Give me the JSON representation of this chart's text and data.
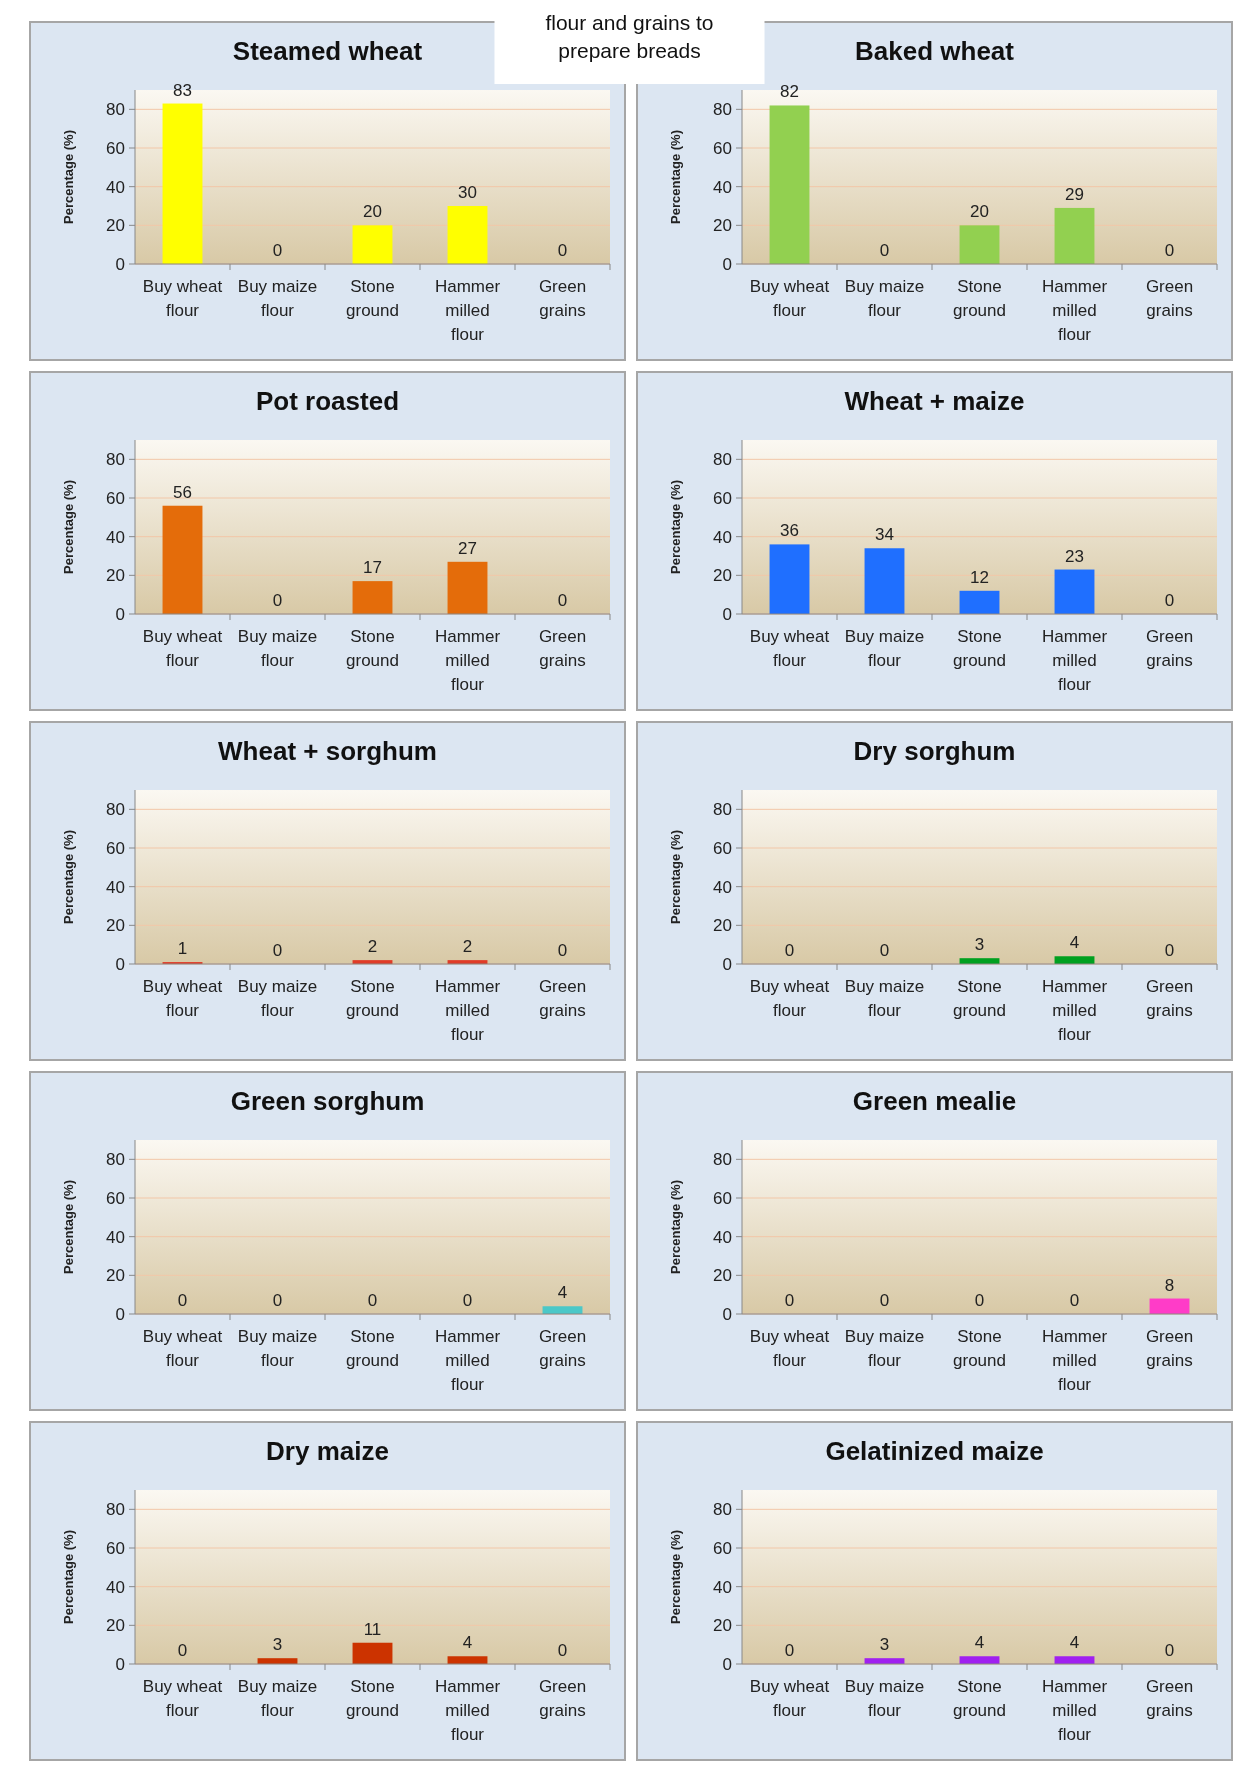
{
  "chart_data": [
    {
      "type": "bar",
      "title": "Steamed wheat",
      "annotations": [
        "flour and grains to prepare breads"
      ],
      "ylabel": "Percentage (%)",
      "categories": [
        "Buy wheat flour",
        "Buy maize flour",
        "Stone ground",
        "Hammer milled flour",
        "Green grains"
      ],
      "values": [
        83,
        0,
        20,
        30,
        0
      ],
      "color": "#ffff00",
      "ylim": [
        0,
        90
      ],
      "yticks": [
        0,
        20,
        40,
        60,
        80
      ],
      "grid": "y",
      "data_labels": true
    },
    {
      "type": "bar",
      "title": "Baked wheat",
      "ylabel": "Percentage (%)",
      "categories": [
        "Buy wheat flour",
        "Buy maize flour",
        "Stone ground",
        "Hammer milled flour",
        "Green grains"
      ],
      "values": [
        82,
        0,
        20,
        29,
        0
      ],
      "color": "#92d050",
      "ylim": [
        0,
        90
      ],
      "yticks": [
        0,
        20,
        40,
        60,
        80
      ],
      "grid": "y",
      "data_labels": true
    },
    {
      "type": "bar",
      "title": "Pot roasted",
      "ylabel": "Percentage (%)",
      "categories": [
        "Buy wheat flour",
        "Buy maize flour",
        "Stone ground",
        "Hammer milled flour",
        "Green grains"
      ],
      "values": [
        56,
        0,
        17,
        27,
        0
      ],
      "color": "#e46c0a",
      "ylim": [
        0,
        90
      ],
      "yticks": [
        0,
        20,
        40,
        60,
        80
      ],
      "grid": "y",
      "data_labels": true
    },
    {
      "type": "bar",
      "title": "Wheat + maize",
      "ylabel": "Percentage (%)",
      "categories": [
        "Buy wheat flour",
        "Buy maize flour",
        "Stone ground",
        "Hammer milled flour",
        "Green grains"
      ],
      "values": [
        36,
        34,
        12,
        23,
        0
      ],
      "color": "#1f6fff",
      "ylim": [
        0,
        90
      ],
      "yticks": [
        0,
        20,
        40,
        60,
        80
      ],
      "grid": "y",
      "data_labels": true
    },
    {
      "type": "bar",
      "title": "Wheat + sorghum",
      "ylabel": "Percentage (%)",
      "categories": [
        "Buy wheat flour",
        "Buy maize flour",
        "Stone ground",
        "Hammer milled flour",
        "Green grains"
      ],
      "values": [
        1,
        0,
        2,
        2,
        0
      ],
      "color": "#e03c28",
      "ylim": [
        0,
        90
      ],
      "yticks": [
        0,
        20,
        40,
        60,
        80
      ],
      "grid": "y",
      "data_labels": true
    },
    {
      "type": "bar",
      "title": "Dry sorghum",
      "ylabel": "Percentage (%)",
      "categories": [
        "Buy wheat flour",
        "Buy maize flour",
        "Stone ground",
        "Hammer milled flour",
        "Green grains"
      ],
      "values": [
        0,
        0,
        3,
        4,
        0
      ],
      "color": "#00a020",
      "ylim": [
        0,
        90
      ],
      "yticks": [
        0,
        20,
        40,
        60,
        80
      ],
      "grid": "y",
      "data_labels": true
    },
    {
      "type": "bar",
      "title": "Green sorghum",
      "ylabel": "Percentage (%)",
      "categories": [
        "Buy wheat flour",
        "Buy maize flour",
        "Stone ground",
        "Hammer milled flour",
        "Green grains"
      ],
      "values": [
        0,
        0,
        0,
        0,
        4
      ],
      "color": "#4bc8c8",
      "ylim": [
        0,
        90
      ],
      "yticks": [
        0,
        20,
        40,
        60,
        80
      ],
      "grid": "y",
      "data_labels": true
    },
    {
      "type": "bar",
      "title": "Green mealie",
      "ylabel": "Percentage (%)",
      "categories": [
        "Buy wheat flour",
        "Buy maize flour",
        "Stone ground",
        "Hammer milled flour",
        "Green grains"
      ],
      "values": [
        0,
        0,
        0,
        0,
        8
      ],
      "color": "#ff3cc8",
      "ylim": [
        0,
        90
      ],
      "yticks": [
        0,
        20,
        40,
        60,
        80
      ],
      "grid": "y",
      "data_labels": true
    },
    {
      "type": "bar",
      "title": "Dry maize",
      "ylabel": "Percentage (%)",
      "categories": [
        "Buy wheat flour",
        "Buy maize flour",
        "Stone ground",
        "Hammer milled flour",
        "Green grains"
      ],
      "values": [
        0,
        3,
        11,
        4,
        0
      ],
      "color": "#cc3300",
      "ylim": [
        0,
        90
      ],
      "yticks": [
        0,
        20,
        40,
        60,
        80
      ],
      "grid": "y",
      "data_labels": true
    },
    {
      "type": "bar",
      "title": "Gelatinized maize",
      "ylabel": "Percentage (%)",
      "categories": [
        "Buy wheat flour",
        "Buy maize flour",
        "Stone ground",
        "Hammer milled flour",
        "Green grains"
      ],
      "values": [
        0,
        3,
        4,
        4,
        0
      ],
      "color": "#a020f0",
      "ylim": [
        0,
        90
      ],
      "yticks": [
        0,
        20,
        40,
        60,
        80
      ],
      "grid": "y",
      "data_labels": true
    }
  ]
}
